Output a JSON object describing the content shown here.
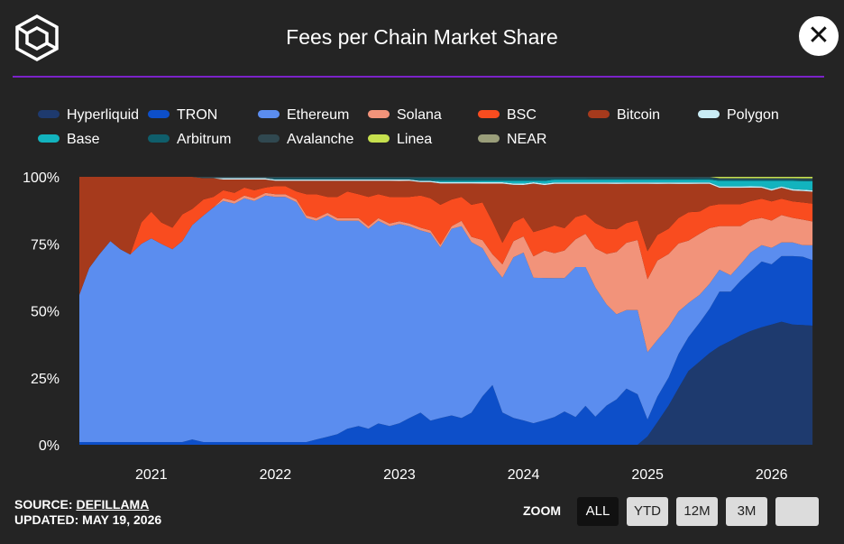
{
  "header": {
    "title": "Fees per Chain Market Share",
    "close_icon": "close-icon",
    "logo_icon": "cube-logo-icon"
  },
  "footer": {
    "source_label": "SOURCE:",
    "source_name": "DEFILLAMA",
    "updated": "UPDATED: MAY 19, 2026"
  },
  "zoom": {
    "label": "ZOOM",
    "buttons": [
      "ALL",
      "YTD",
      "12M",
      "3M",
      ""
    ],
    "active": "ALL"
  },
  "chart_data": {
    "type": "area",
    "stacking": "percent",
    "title": "Fees per Chain Market Share",
    "xlabel": "",
    "ylabel": "",
    "x": [
      2020.42,
      2020.5,
      2020.58,
      2020.67,
      2020.75,
      2020.83,
      2020.92,
      2021.0,
      2021.08,
      2021.17,
      2021.25,
      2021.33,
      2021.42,
      2021.5,
      2021.58,
      2021.67,
      2021.75,
      2021.83,
      2021.92,
      2022.0,
      2022.08,
      2022.17,
      2022.25,
      2022.33,
      2022.42,
      2022.5,
      2022.58,
      2022.67,
      2022.75,
      2022.83,
      2022.92,
      2023.0,
      2023.08,
      2023.17,
      2023.25,
      2023.33,
      2023.42,
      2023.5,
      2023.58,
      2023.67,
      2023.75,
      2023.83,
      2023.92,
      2024.0,
      2024.08,
      2024.17,
      2024.25,
      2024.33,
      2024.42,
      2024.5,
      2024.58,
      2024.67,
      2024.75,
      2024.83,
      2024.92,
      2025.0,
      2025.08,
      2025.17,
      2025.25,
      2025.33,
      2025.42,
      2025.5,
      2025.58,
      2025.67,
      2025.75,
      2025.83,
      2025.92,
      2026.0,
      2026.08,
      2026.17,
      2026.25,
      2026.33
    ],
    "x_ticks": [
      "2021",
      "2022",
      "2023",
      "2024",
      "2025",
      "2026"
    ],
    "x_tick_values": [
      2021,
      2022,
      2023,
      2024,
      2025,
      2026
    ],
    "xlim": [
      2020.42,
      2026.38
    ],
    "y_ticks": [
      "0%",
      "25%",
      "50%",
      "75%",
      "100%"
    ],
    "ylim": [
      0,
      100
    ],
    "grid": false,
    "legend_position": "top",
    "series": [
      {
        "name": "Hyperliquid",
        "color": "#1e3a6e",
        "values": [
          0,
          0,
          0,
          0,
          0,
          0,
          0,
          0,
          0,
          0,
          0,
          0,
          0,
          0,
          0,
          0,
          0,
          0,
          0,
          0,
          0,
          0,
          0,
          0,
          0,
          0,
          0,
          0,
          0,
          0,
          0,
          0,
          0,
          0,
          0,
          0,
          0,
          0,
          0,
          0,
          0,
          0,
          0,
          0,
          0,
          0,
          0,
          0,
          0,
          0,
          0,
          0,
          0,
          0,
          0,
          3,
          8,
          14,
          20,
          26,
          30,
          33,
          36,
          38,
          40,
          42,
          43,
          44,
          45,
          44,
          42,
          40
        ]
      },
      {
        "name": "TRON",
        "color": "#0d4fc9",
        "values": [
          1,
          1,
          1,
          1,
          1,
          1,
          1,
          1,
          1,
          1,
          1,
          2,
          1,
          1,
          1,
          1,
          1,
          1,
          1,
          1,
          1,
          1,
          1,
          2,
          3,
          4,
          6,
          7,
          6,
          8,
          7,
          8,
          10,
          12,
          9,
          10,
          11,
          10,
          12,
          18,
          22,
          12,
          10,
          9,
          8,
          9,
          10,
          12,
          10,
          14,
          10,
          14,
          16,
          20,
          18,
          6,
          9,
          10,
          12,
          12,
          14,
          16,
          20,
          18,
          20,
          22,
          24,
          22,
          24,
          25,
          24,
          22
        ]
      },
      {
        "name": "Ethereum",
        "color": "#5b8def",
        "values": [
          55,
          65,
          70,
          75,
          72,
          70,
          74,
          76,
          74,
          72,
          75,
          80,
          85,
          88,
          90,
          89,
          91,
          90,
          92,
          92,
          92,
          90,
          84,
          82,
          83,
          80,
          78,
          77,
          75,
          76,
          75,
          74,
          72,
          68,
          70,
          64,
          70,
          72,
          64,
          55,
          44,
          50,
          60,
          62,
          54,
          52,
          50,
          48,
          54,
          50,
          46,
          36,
          30,
          28,
          30,
          24,
          20,
          18,
          15,
          12,
          10,
          9,
          8,
          6,
          6,
          7,
          6,
          6,
          5,
          5,
          4,
          5
        ]
      },
      {
        "name": "Solana",
        "color": "#f2937a",
        "values": [
          0,
          0,
          0,
          0,
          0,
          0,
          0,
          0,
          0,
          0,
          0,
          0,
          0,
          0,
          1,
          1,
          1,
          1,
          1,
          1,
          1,
          1,
          1,
          1,
          1,
          1,
          1,
          1,
          1,
          1,
          1,
          1,
          1,
          1,
          1,
          1,
          1,
          2,
          2,
          3,
          4,
          5,
          6,
          6,
          8,
          10,
          9,
          10,
          10,
          12,
          14,
          18,
          22,
          24,
          25,
          26,
          28,
          26,
          24,
          22,
          22,
          20,
          16,
          18,
          14,
          12,
          10,
          10,
          10,
          9,
          9,
          8
        ]
      },
      {
        "name": "BSC",
        "color": "#f94c1f",
        "values": [
          0,
          0,
          0,
          0,
          0,
          0,
          8,
          10,
          8,
          8,
          10,
          6,
          6,
          4,
          3,
          3,
          3,
          3,
          2,
          3,
          3,
          3,
          8,
          9,
          6,
          8,
          10,
          9,
          11,
          9,
          10,
          9,
          10,
          12,
          12,
          15,
          10,
          9,
          12,
          14,
          12,
          8,
          7,
          7,
          9,
          8,
          10,
          8,
          8,
          7,
          9,
          9,
          8,
          7,
          7,
          10,
          9,
          9,
          9,
          10,
          8,
          8,
          8,
          8,
          8,
          7,
          7,
          7,
          6,
          6,
          6,
          6
        ]
      },
      {
        "name": "Bitcoin",
        "color": "#a63a1c",
        "values": [
          44,
          34,
          29,
          24,
          27,
          29,
          17,
          13,
          17,
          19,
          14,
          12,
          8,
          7,
          4,
          5,
          3,
          4,
          3,
          2,
          2,
          4,
          5,
          5,
          6,
          6,
          4,
          5,
          6,
          5,
          6,
          6,
          6,
          5,
          6,
          8,
          6,
          5,
          8,
          7,
          14,
          22,
          14,
          12,
          18,
          16,
          15,
          16,
          12,
          11,
          14,
          16,
          16,
          14,
          13,
          24,
          18,
          16,
          12,
          10,
          10,
          8,
          6,
          6,
          6,
          5,
          4,
          4,
          4,
          4,
          4,
          4
        ]
      },
      {
        "name": "Polygon",
        "color": "#c9ecf5",
        "values": [
          0,
          0,
          0,
          0,
          0,
          0,
          0,
          0,
          0,
          0,
          0,
          0,
          0,
          0,
          0.5,
          0.5,
          0.5,
          0.5,
          0.5,
          0.5,
          0.5,
          0.5,
          0.5,
          0.5,
          0.5,
          0.5,
          0.5,
          0.5,
          0.5,
          0.5,
          0.5,
          0.5,
          0.5,
          0.5,
          0.5,
          0.5,
          0.5,
          0.5,
          0.5,
          0.5,
          0.5,
          0.5,
          0.5,
          0.5,
          0.5,
          0.5,
          0.5,
          0.5,
          0.5,
          0.5,
          0.5,
          0.5,
          0.5,
          0.5,
          0.5,
          0.5,
          0.5,
          0.5,
          0.5,
          0.5,
          0.5,
          0.5,
          0.5,
          0.5,
          0.5,
          0.5,
          0.5,
          0.5,
          0.5,
          0.5,
          0.5,
          0.5
        ]
      },
      {
        "name": "Base",
        "color": "#12b3be",
        "values": [
          0,
          0,
          0,
          0,
          0,
          0,
          0,
          0,
          0,
          0,
          0,
          0,
          0,
          0,
          0,
          0,
          0,
          0,
          0,
          0,
          0,
          0,
          0,
          0,
          0,
          0,
          0,
          0,
          0,
          0,
          0,
          0,
          0,
          0,
          0,
          0.5,
          0.5,
          0.5,
          0.5,
          0.5,
          0.5,
          0.5,
          1,
          1,
          0.5,
          1,
          1,
          1,
          1,
          1,
          1,
          1,
          1,
          1,
          1,
          1,
          1,
          1,
          1,
          1,
          1,
          1,
          2,
          2,
          2,
          2,
          2,
          3,
          2,
          3,
          3,
          3
        ]
      },
      {
        "name": "Arbitrum",
        "color": "#0f5e6b",
        "values": [
          0,
          0,
          0,
          0,
          0,
          0,
          0,
          0,
          0,
          0,
          0,
          0,
          0,
          0,
          0,
          0,
          0,
          0,
          0,
          0.5,
          0.5,
          0.5,
          0.5,
          0.5,
          0.5,
          0.5,
          0.5,
          0.5,
          0.5,
          0.5,
          0.5,
          0.5,
          0.5,
          1,
          1,
          1,
          1,
          1,
          1,
          1,
          1,
          1,
          1,
          1,
          1,
          1,
          0.5,
          0.5,
          0.5,
          0.5,
          0.5,
          0.5,
          0.5,
          0.5,
          0.5,
          0.5,
          0.5,
          0.5,
          0.5,
          0.5,
          0.5,
          0.5,
          0.5,
          0.5,
          0.5,
          0.5,
          0.5,
          0.5,
          0.5,
          0.5,
          0.5,
          0.5
        ]
      },
      {
        "name": "Avalanche",
        "color": "#304850",
        "values": [
          0,
          0,
          0,
          0,
          0,
          0,
          0,
          0,
          0,
          0,
          0,
          0,
          0.5,
          0.5,
          0.5,
          0.5,
          0.5,
          0.5,
          0.5,
          0.5,
          0.5,
          0.5,
          0.5,
          0.5,
          0.5,
          0.5,
          0.5,
          0.5,
          0.5,
          0.5,
          0.5,
          0.5,
          0.5,
          0.5,
          0.5,
          0.5,
          0.5,
          0.5,
          0.5,
          0.5,
          0.5,
          0.5,
          0.5,
          0.5,
          0.5,
          0.5,
          0.5,
          0.5,
          0.5,
          0.5,
          0.5,
          0.5,
          0.5,
          0.5,
          0.5,
          0.5,
          0.5,
          0.5,
          0.5,
          0.5,
          0.5,
          0.5,
          0.5,
          0.5,
          0.5,
          0.5,
          0.5,
          0.5,
          0.5,
          0.5,
          0.5,
          0.5
        ]
      },
      {
        "name": "Linea",
        "color": "#c6e04e",
        "values": [
          0,
          0,
          0,
          0,
          0,
          0,
          0,
          0,
          0,
          0,
          0,
          0,
          0,
          0,
          0,
          0,
          0,
          0,
          0,
          0,
          0,
          0,
          0,
          0,
          0,
          0,
          0,
          0,
          0,
          0,
          0,
          0,
          0,
          0,
          0,
          0,
          0,
          0,
          0,
          0,
          0,
          0,
          0,
          0,
          0,
          0,
          0,
          0,
          0,
          0,
          0,
          0,
          0,
          0,
          0,
          0,
          0,
          0,
          0,
          0,
          0,
          0,
          0.5,
          0.5,
          0.5,
          0.5,
          0.5,
          0.5,
          0.5,
          0.5,
          0.5,
          0.5
        ]
      },
      {
        "name": "NEAR",
        "color": "#9a9e7a",
        "values": [
          0,
          0,
          0,
          0,
          0,
          0,
          0,
          0,
          0,
          0,
          0,
          0,
          0,
          0,
          0,
          0,
          0,
          0,
          0,
          0,
          0,
          0,
          0,
          0,
          0,
          0,
          0,
          0,
          0,
          0,
          0,
          0,
          0,
          0,
          0,
          0,
          0,
          0,
          0,
          0,
          0,
          0,
          0,
          0,
          0,
          0,
          0,
          0,
          0,
          0,
          0,
          0,
          0,
          0,
          0,
          0,
          0,
          0,
          0,
          0,
          0,
          0,
          0,
          0,
          0,
          0,
          0,
          0,
          0,
          0,
          0,
          0
        ]
      }
    ]
  }
}
